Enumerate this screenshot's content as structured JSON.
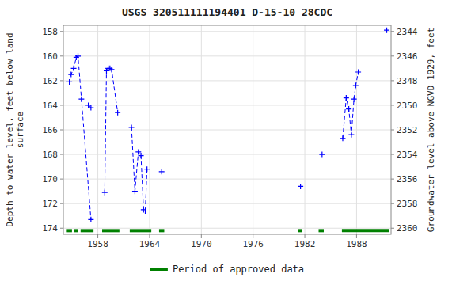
{
  "chart_data": {
    "type": "line",
    "title": "USGS 320511111194401 D-15-10 28CDC",
    "y_label": "Depth to water level, feet below land\nsurface",
    "y2_label": "Groundwater level above NGVD 1929, feet",
    "xlim": [
      1954,
      1992
    ],
    "xticks": [
      1958,
      1964,
      1970,
      1976,
      1982,
      1988
    ],
    "ylim": [
      174.5,
      157.5
    ],
    "yticks": [
      158,
      160,
      162,
      164,
      166,
      168,
      170,
      172,
      174
    ],
    "y2lim": [
      2360.5,
      2343.5
    ],
    "y2ticks": [
      2360,
      2358,
      2356,
      2354,
      2352,
      2350,
      2348,
      2346,
      2344
    ],
    "grid": true,
    "legend": "bottom",
    "series": [
      {
        "type": "line",
        "color": "#0000FF",
        "marker": "plus",
        "line_style": "dashed",
        "x": [
          1954.7,
          1954.9,
          1955.2,
          1955.5,
          1955.7,
          1956.1,
          1957.2,
          null,
          1956.9,
          1957.2,
          null,
          1958.8,
          1959.0,
          1959.2,
          1959.4,
          1959.6,
          1960.3,
          null,
          1961.9,
          1962.3,
          1962.7,
          1963.0,
          1963.3,
          1963.5,
          1963.7,
          null,
          1965.4,
          null,
          1981.5,
          null,
          1984.0,
          null,
          1986.4,
          1986.8,
          1987.1,
          1987.4,
          1987.7,
          1987.9,
          1988.2,
          null,
          1991.5
        ],
        "values": [
          162.1,
          161.5,
          161.0,
          160.1,
          160.0,
          163.5,
          173.3,
          null,
          164.0,
          164.2,
          null,
          171.1,
          161.2,
          161.0,
          161.0,
          161.1,
          164.6,
          null,
          165.8,
          171.0,
          167.8,
          168.1,
          172.5,
          172.6,
          169.2,
          null,
          169.4,
          null,
          170.6,
          null,
          168.0,
          null,
          166.7,
          163.4,
          164.3,
          166.4,
          163.5,
          162.4,
          161.3,
          null,
          157.9
        ]
      },
      {
        "name": "Period of approved data",
        "type": "interval",
        "color": "#008000",
        "line_style": "solid",
        "y": 174.2,
        "periods": [
          [
            1954.4,
            1955.0
          ],
          [
            1955.2,
            1955.7
          ],
          [
            1956.0,
            1957.5
          ],
          [
            1958.5,
            1960.5
          ],
          [
            1961.7,
            1964.2
          ],
          [
            1965.1,
            1965.7
          ],
          [
            1981.2,
            1981.7
          ],
          [
            1983.6,
            1984.2
          ],
          [
            1986.3,
            1991.8
          ]
        ]
      }
    ]
  }
}
